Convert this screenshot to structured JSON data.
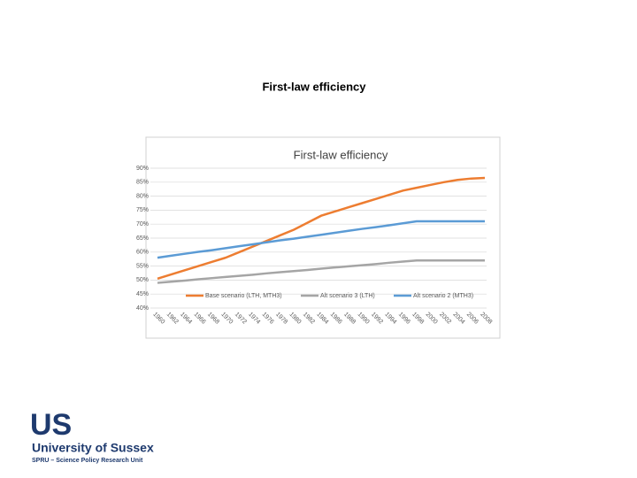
{
  "slide_title": "First-law efficiency",
  "chart_data": {
    "type": "line",
    "title": "First-law efficiency",
    "categories": [
      "1960",
      "1962",
      "1964",
      "1966",
      "1968",
      "1970",
      "1972",
      "1974",
      "1976",
      "1978",
      "1980",
      "1982",
      "1984",
      "1986",
      "1988",
      "1990",
      "1992",
      "1994",
      "1996",
      "1998",
      "2000",
      "2002",
      "2004",
      "2006",
      "2008"
    ],
    "series": [
      {
        "name": "Base scenario (LTH, MTH3)",
        "color": "#ed7d31",
        "values": [
          50.5,
          52,
          53.5,
          55,
          56.5,
          58,
          60,
          62,
          64,
          66,
          68,
          70.5,
          73,
          74.5,
          76,
          77.5,
          79,
          80.5,
          82,
          83,
          84,
          85,
          85.8,
          86.3,
          86.5
        ]
      },
      {
        "name": "Alt scenario 3 (LTH)",
        "color": "#a5a5a5",
        "values": [
          49,
          49.4,
          49.8,
          50.3,
          50.7,
          51.1,
          51.5,
          51.9,
          52.4,
          52.8,
          53.2,
          53.6,
          54.1,
          54.5,
          54.9,
          55.3,
          55.7,
          56.2,
          56.6,
          57,
          57,
          57,
          57,
          57,
          57
        ]
      },
      {
        "name": "Alt scenario 2 (MTH3)",
        "color": "#5b9bd5",
        "values": [
          58,
          58.7,
          59.4,
          60.1,
          60.7,
          61.4,
          62.1,
          62.8,
          63.5,
          64.2,
          64.8,
          65.5,
          66.2,
          66.9,
          67.6,
          68.3,
          68.9,
          69.6,
          70.3,
          71,
          71,
          71,
          71,
          71,
          71
        ]
      }
    ],
    "ylim": [
      40,
      90
    ],
    "yticks": [
      {
        "value": 40,
        "label": "40%"
      },
      {
        "value": 45,
        "label": "45%"
      },
      {
        "value": 50,
        "label": "50%"
      },
      {
        "value": 55,
        "label": "55%"
      },
      {
        "value": 60,
        "label": "60%"
      },
      {
        "value": 65,
        "label": "65%"
      },
      {
        "value": 70,
        "label": "70%"
      },
      {
        "value": 75,
        "label": "75%"
      },
      {
        "value": 80,
        "label": "80%"
      },
      {
        "value": 85,
        "label": "85%"
      },
      {
        "value": 90,
        "label": "90%"
      }
    ],
    "grid": true,
    "legend": "bottom"
  },
  "logo": {
    "mark": "US",
    "name": "University of Sussex",
    "unit": "SPRU – Science Policy Research Unit"
  }
}
